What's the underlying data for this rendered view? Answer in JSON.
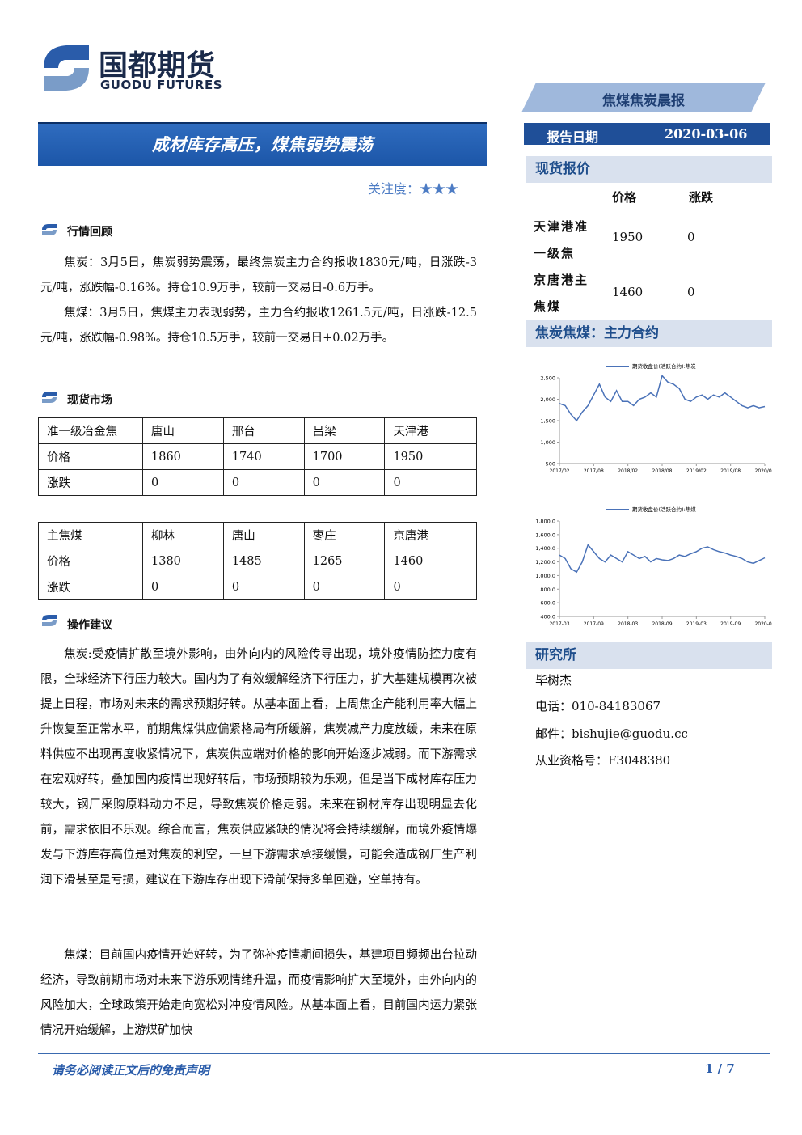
{
  "header": {
    "company": "国都期货",
    "company_en": "GUODU FUTURES",
    "report_name": "焦煤焦炭晨报",
    "date_label": "报告日期",
    "date": "2020-03-06",
    "title": "成材库存高压，煤焦弱势震荡",
    "attention": "关注度：★★★"
  },
  "sections": {
    "review": {
      "heading": "行情回顾",
      "paragraphs": [
        "焦炭：3月5日，焦炭弱势震荡，最终焦炭主力合约报收1830元/吨，日涨跌-3元/吨，涨跌幅-0.16%。持仓10.9万手，较前一交易日-0.6万手。",
        "焦煤：3月5日，焦煤主力表现弱势，主力合约报收1261.5元/吨，日涨跌-12.5元/吨，涨跌幅-0.98%。持仓10.5万手，较前一交易日+0.02万手。"
      ]
    },
    "spot": {
      "heading": "现货市场",
      "tables": [
        {
          "rows": [
            [
              "准一级冶金焦",
              "唐山",
              "邢台",
              "吕梁",
              "天津港"
            ],
            [
              "价格",
              "1860",
              "1740",
              "1700",
              "1950"
            ],
            [
              "涨跌",
              "0",
              "0",
              "0",
              "0"
            ]
          ]
        },
        {
          "rows": [
            [
              "主焦煤",
              "柳林",
              "唐山",
              "枣庄",
              "京唐港"
            ],
            [
              "价格",
              "1380",
              "1485",
              "1265",
              "1460"
            ],
            [
              "涨跌",
              "0",
              "0",
              "0",
              "0"
            ]
          ]
        }
      ]
    },
    "advice": {
      "heading": "操作建议",
      "paragraphs": [
        "焦炭:受疫情扩散至境外影响，由外向内的风险传导出现，境外疫情防控力度有限，全球经济下行压力较大。国内为了有效缓解经济下行压力，扩大基建规模再次被提上日程，市场对未来的需求预期好转。从基本面上看，上周焦企产能利用率大幅上升恢复至正常水平，前期焦煤供应偏紧格局有所缓解，焦炭减产力度放缓，未来在原料供应不出现再度收紧情况下，焦炭供应端对价格的影响开始逐步减弱。而下游需求在宏观好转，叠加国内疫情出现好转后，市场预期较为乐观，但是当下成材库存压力较大，钢厂采购原料动力不足，导致焦炭价格走弱。未来在钢材库存出现明显去化前，需求依旧不乐观。综合而言，焦炭供应紧缺的情况将会持续缓解，而境外疫情爆发与下游库存高位是对焦炭的利空，一旦下游需求承接缓慢，可能会造成钢厂生产利润下滑甚至是亏损，建议在下游库存出现下滑前保持多单回避，空单持有。",
        "焦煤：目前国内疫情开始好转，为了弥补疫情期间损失，基建项目频频出台拉动经济，导致前期市场对未来下游乐观情绪升温，而疫情影响扩大至境外，由外向内的风险加大，全球政策开始走向宽松对冲疫情风险。从基本面上看，目前国内运力紧张情况开始缓解，上游煤矿加快"
      ]
    }
  },
  "sidebar": {
    "spot_heading": "现货报价",
    "spot_table": {
      "headers": [
        "价格",
        "涨跌"
      ],
      "rows": [
        [
          "天津港准一级焦",
          "1950",
          "0"
        ],
        [
          "京唐港主焦煤",
          "1460",
          "0"
        ]
      ]
    },
    "chart_heading": "焦炭焦煤：主力合约",
    "research_heading": "研究所",
    "analyst": "毕树杰",
    "phone": "电话：010-84183067",
    "email": "邮件：bishujie@guodu.cc",
    "license": "从业资格号：F3048380"
  },
  "chart_data": [
    {
      "type": "line",
      "x": [
        "2017/02",
        "2017/03",
        "2017/04",
        "2017/05",
        "2017/06",
        "2017/07",
        "2017/08",
        "2017/09",
        "2017/10",
        "2017/11",
        "2017/12",
        "2018/01",
        "2018/02",
        "2018/03",
        "2018/04",
        "2018/05",
        "2018/06",
        "2018/07",
        "2018/08",
        "2018/09",
        "2018/10",
        "2018/11",
        "2018/12",
        "2019/01",
        "2019/02",
        "2019/03",
        "2019/04",
        "2019/05",
        "2019/06",
        "2019/07",
        "2019/08",
        "2019/09",
        "2019/10",
        "2019/11",
        "2019/12",
        "2020/01",
        "2020/02"
      ],
      "series": [
        {
          "name": "期货收盘价(活跃合约):焦炭",
          "color": "#4a72b8",
          "values": [
            1900,
            1850,
            1650,
            1500,
            1700,
            1850,
            2100,
            2350,
            2050,
            1950,
            2200,
            1950,
            1950,
            1850,
            2000,
            2050,
            2150,
            2050,
            2550,
            2400,
            2350,
            2250,
            2000,
            1950,
            2050,
            2100,
            2000,
            2100,
            2050,
            2150,
            2050,
            1950,
            1850,
            1800,
            1850,
            1800,
            1830
          ]
        }
      ],
      "ylim": [
        500,
        2500
      ],
      "yticks": [
        500,
        {
          "value": 1000,
          "label": "1,000"
        },
        {
          "value": 1500,
          "label": "1,500"
        },
        {
          "value": 2000,
          "label": "2,000"
        },
        {
          "value": 2500,
          "label": "2,500"
        }
      ],
      "xticks": [
        "2017/02",
        "2017/08",
        "2018/02",
        "2018/08",
        "2019/02",
        "2019/08",
        "2020/02"
      ]
    },
    {
      "type": "line",
      "x": [
        "2017-03",
        "2017-04",
        "2017-05",
        "2017-06",
        "2017-07",
        "2017-08",
        "2017-09",
        "2017-10",
        "2017-11",
        "2017-12",
        "2018-01",
        "2018-02",
        "2018-03",
        "2018-04",
        "2018-05",
        "2018-06",
        "2018-07",
        "2018-08",
        "2018-09",
        "2018-10",
        "2018-11",
        "2018-12",
        "2019-01",
        "2019-02",
        "2019-03",
        "2019-04",
        "2019-05",
        "2019-06",
        "2019-07",
        "2019-08",
        "2019-09",
        "2019-10",
        "2019-11",
        "2019-12",
        "2020-01",
        "2020-02",
        "2020-03"
      ],
      "series": [
        {
          "name": "期货收盘价(活跃合约):焦煤",
          "color": "#4a72b8",
          "values": [
            1300,
            1250,
            1100,
            1050,
            1200,
            1450,
            1350,
            1250,
            1200,
            1300,
            1250,
            1200,
            1350,
            1300,
            1250,
            1280,
            1200,
            1250,
            1230,
            1220,
            1250,
            1300,
            1280,
            1320,
            1350,
            1400,
            1420,
            1380,
            1350,
            1330,
            1300,
            1280,
            1250,
            1200,
            1180,
            1220,
            1260
          ]
        }
      ],
      "ylim": [
        400,
        1800
      ],
      "yticks": [
        {
          "value": 400,
          "label": "400.0"
        },
        {
          "value": 600,
          "label": "600.0"
        },
        {
          "value": 800,
          "label": "800.0"
        },
        {
          "value": 1000,
          "label": "1,000.0"
        },
        {
          "value": 1200,
          "label": "1,200.0"
        },
        {
          "value": 1400,
          "label": "1,400.0"
        },
        {
          "value": 1600,
          "label": "1,600.0"
        },
        {
          "value": 1800,
          "label": "1,800.0"
        }
      ],
      "xticks": [
        "2017-03",
        "2017-09",
        "2018-03",
        "2018-09",
        "2019-03",
        "2019-09",
        "2020-03"
      ]
    }
  ],
  "footer": {
    "disclaimer": "请务必阅读正文后的免责声明",
    "page": "1 / 7"
  }
}
